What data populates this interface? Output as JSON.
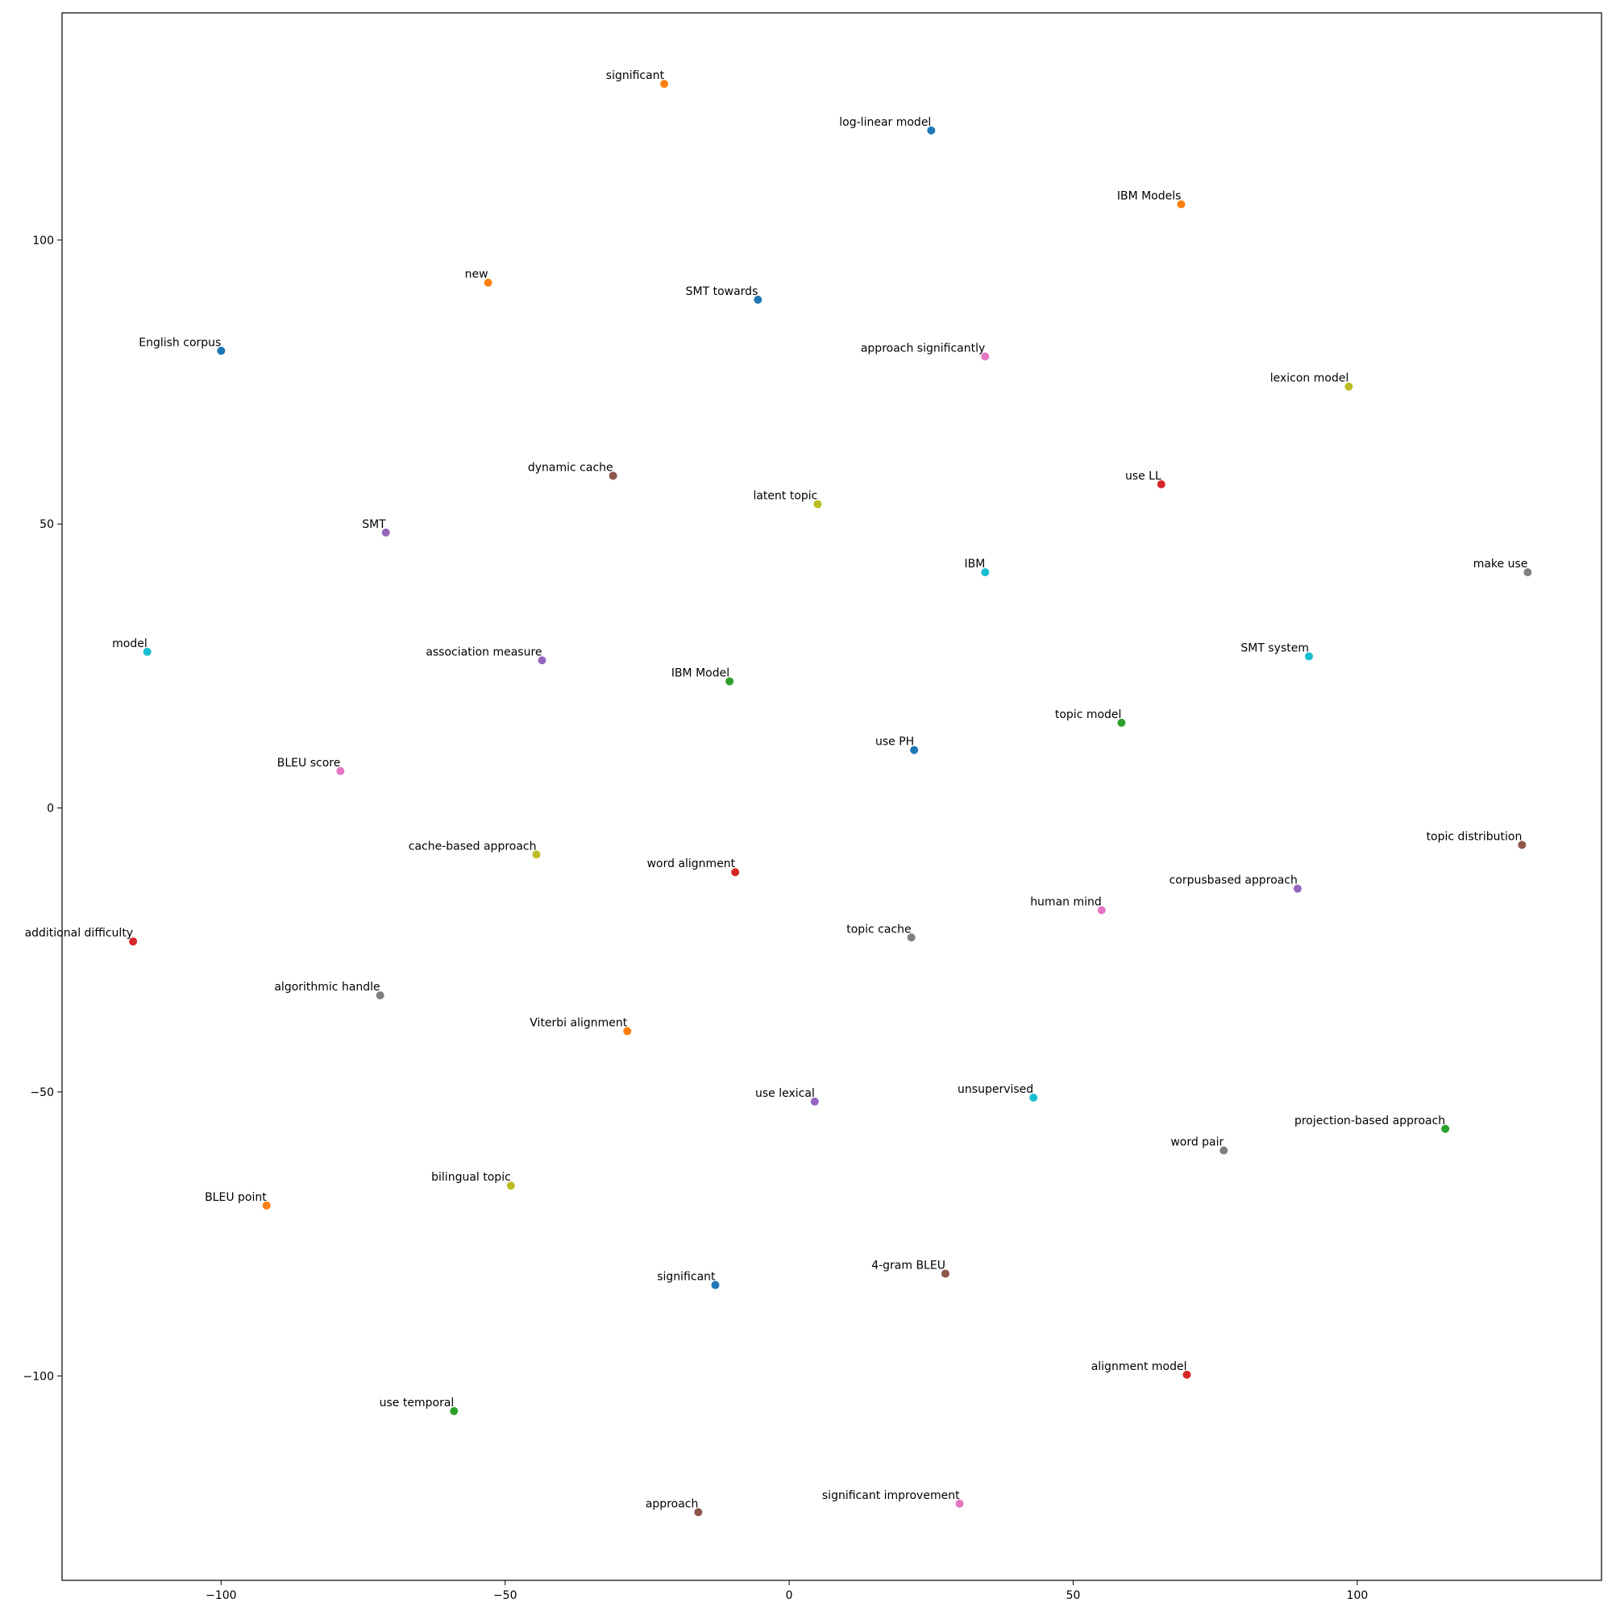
{
  "chart_data": {
    "type": "scatter",
    "title": "",
    "xlabel": "",
    "ylabel": "",
    "xlim": [
      -128,
      143
    ],
    "ylim": [
      -136,
      140
    ],
    "grid": false,
    "legend": "none",
    "x_ticks": [
      -100,
      -50,
      0,
      50,
      100
    ],
    "y_ticks": [
      -100,
      -50,
      0,
      50,
      100
    ],
    "x_tick_labels": [
      "−100",
      "−50",
      "0",
      "50",
      "100"
    ],
    "y_tick_labels": [
      "−100",
      "−50",
      "0",
      "50",
      "100"
    ],
    "colors": {
      "blue": "#1f77b4",
      "orange": "#ff7f0e",
      "green": "#2ca02c",
      "red": "#d62728",
      "purple": "#9467bd",
      "brown": "#8c564b",
      "pink": "#e377c2",
      "gray": "#7f7f7f",
      "olive": "#bcbd22",
      "cyan": "#17becf"
    },
    "points": [
      {
        "label": "significant",
        "x": -22,
        "y": 127.5,
        "color": "orange"
      },
      {
        "label": "log-linear model",
        "x": 25,
        "y": 119.3,
        "color": "blue"
      },
      {
        "label": "IBM Models",
        "x": 69,
        "y": 106.3,
        "color": "orange"
      },
      {
        "label": "new",
        "x": -53,
        "y": 92.5,
        "color": "orange"
      },
      {
        "label": "SMT towards",
        "x": -5.5,
        "y": 89.5,
        "color": "blue"
      },
      {
        "label": "English corpus",
        "x": -100,
        "y": 80.5,
        "color": "blue"
      },
      {
        "label": "approach significantly",
        "x": 34.5,
        "y": 79.5,
        "color": "pink"
      },
      {
        "label": "lexicon model",
        "x": 98.5,
        "y": 74.2,
        "color": "olive"
      },
      {
        "label": "dynamic cache",
        "x": -31,
        "y": 58.5,
        "color": "brown"
      },
      {
        "label": "use LL",
        "x": 65.5,
        "y": 57,
        "color": "red"
      },
      {
        "label": "latent topic",
        "x": 5,
        "y": 53.5,
        "color": "olive"
      },
      {
        "label": "SMT",
        "x": -71,
        "y": 48.5,
        "color": "purple"
      },
      {
        "label": "IBM",
        "x": 34.5,
        "y": 41.5,
        "color": "cyan"
      },
      {
        "label": "make use",
        "x": 130,
        "y": 41.5,
        "color": "gray"
      },
      {
        "label": "model",
        "x": -113,
        "y": 27.5,
        "color": "cyan"
      },
      {
        "label": "SMT system",
        "x": 91.5,
        "y": 26.7,
        "color": "cyan"
      },
      {
        "label": "association measure",
        "x": -43.5,
        "y": 26,
        "color": "purple"
      },
      {
        "label": "IBM Model",
        "x": -10.5,
        "y": 22.3,
        "color": "green"
      },
      {
        "label": "topic model",
        "x": 58.5,
        "y": 15,
        "color": "green"
      },
      {
        "label": "use PH",
        "x": 22,
        "y": 10.2,
        "color": "blue"
      },
      {
        "label": "BLEU score",
        "x": -79,
        "y": 6.5,
        "color": "pink"
      },
      {
        "label": "topic distribution",
        "x": 129,
        "y": -6.5,
        "color": "brown"
      },
      {
        "label": "cache-based approach",
        "x": -44.5,
        "y": -8.2,
        "color": "olive"
      },
      {
        "label": "word alignment",
        "x": -9.5,
        "y": -11.3,
        "color": "red"
      },
      {
        "label": "corpusbased approach",
        "x": 89.5,
        "y": -14.2,
        "color": "purple"
      },
      {
        "label": "human mind",
        "x": 55,
        "y": -18,
        "color": "pink"
      },
      {
        "label": "additional difficulty",
        "x": -115.5,
        "y": -23.5,
        "color": "red"
      },
      {
        "label": "topic cache",
        "x": 21.5,
        "y": -22.8,
        "color": "gray"
      },
      {
        "label": "algorithmic handle",
        "x": -72,
        "y": -33,
        "color": "gray"
      },
      {
        "label": "Viterbi alignment",
        "x": -28.5,
        "y": -39.3,
        "color": "orange"
      },
      {
        "label": "use lexical",
        "x": 4.5,
        "y": -51.7,
        "color": "purple"
      },
      {
        "label": "unsupervised",
        "x": 43,
        "y": -51,
        "color": "cyan"
      },
      {
        "label": "projection-based approach",
        "x": 115.5,
        "y": -56.5,
        "color": "green"
      },
      {
        "label": "word pair",
        "x": 76.5,
        "y": -60.3,
        "color": "gray"
      },
      {
        "label": "bilingual topic",
        "x": -49,
        "y": -66.5,
        "color": "olive"
      },
      {
        "label": "BLEU point",
        "x": -92,
        "y": -70,
        "color": "orange"
      },
      {
        "label": "significant",
        "x": -13,
        "y": -84,
        "color": "blue"
      },
      {
        "label": "4-gram BLEU",
        "x": 27.5,
        "y": -82,
        "color": "brown"
      },
      {
        "label": "alignment model",
        "x": 70,
        "y": -99.8,
        "color": "red"
      },
      {
        "label": "use temporal",
        "x": -59,
        "y": -106.2,
        "color": "green"
      },
      {
        "label": "significant improvement",
        "x": 30,
        "y": -122.5,
        "color": "pink"
      },
      {
        "label": "approach",
        "x": -16,
        "y": -124,
        "color": "brown"
      }
    ]
  }
}
